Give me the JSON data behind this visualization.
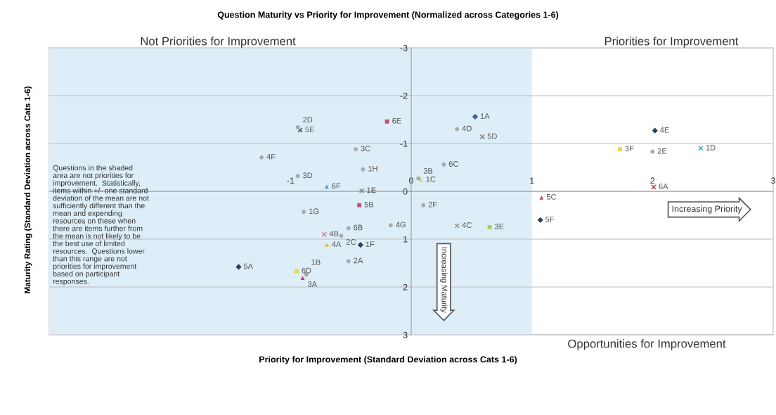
{
  "chart_data": {
    "type": "scatter",
    "title": "Question Maturity vs Priority for Improvement (Normalized across Categories 1-6)",
    "xlabel": "Priority for Improvement (Standard Deviation across Cats 1-6)",
    "ylabel": "Maturity Rating (Standard Deviation across Cats 1-6)",
    "xlim": [
      -3,
      3
    ],
    "xticks": [
      -1,
      0,
      1,
      2,
      3
    ],
    "ylim": [
      3,
      -3
    ],
    "yticks": [
      -3,
      -2,
      -1,
      0,
      1,
      2,
      3
    ],
    "grid": "y",
    "legend": false,
    "bands": [
      {
        "axis": "x",
        "from": -3,
        "to": 1,
        "color": "#ddeef8"
      }
    ],
    "annotations": [
      "Not Priorities for Improvement",
      "Priorities for Improvement",
      "Opportunities for Improvement",
      "Increasing Priority",
      "Increasing Maturity",
      "Questions in the shaded\narea are not priorities for\nimprovement.  Statistically,\nitems within +/- one standard\ndeviation of the mean are not\nsufficiently different than the\nmean and expending\nresources on these when\nthere are items further from\nthe mean is not likely to be\nthe best use of limited\nresources.  Questions lower\nthan this range are not\npriorities for improvement\nbased on participant\nresponses.",
      {
        "text": "1A",
        "x": 0.53,
        "y": -1.56
      },
      {
        "text": "5F",
        "x": 1.07,
        "y": 0.6
      },
      {
        "text": "1F",
        "x": -0.42,
        "y": 1.12
      },
      {
        "text": "5A",
        "x": -1.43,
        "y": 1.58
      },
      {
        "text": "4E",
        "x": 2.02,
        "y": -1.27
      },
      {
        "text": "6E",
        "x": -0.2,
        "y": -1.46
      },
      {
        "text": "5B",
        "x": -0.43,
        "y": 0.29
      },
      {
        "text": "3F",
        "x": 1.73,
        "y": -0.88
      },
      {
        "text": "3E",
        "x": 0.65,
        "y": 0.75
      },
      {
        "text": "6D",
        "x": -0.95,
        "y": 1.67
      },
      {
        "text": "5C",
        "x": 1.08,
        "y": 0.13
      },
      {
        "text": "6F",
        "x": -0.7,
        "y": -0.1
      },
      {
        "text": "4A",
        "x": -0.7,
        "y": 1.12
      },
      {
        "text": "3A",
        "x": -0.9,
        "y": 1.81
      },
      {
        "text": "1C",
        "x": 0.08,
        "y": -0.24
      },
      {
        "text": "5E",
        "x": -0.92,
        "y": -1.28
      },
      {
        "text": "5D",
        "x": 0.59,
        "y": -1.14
      },
      {
        "text": "1E",
        "x": -0.41,
        "y": -0.01
      },
      {
        "text": "4B",
        "x": -0.72,
        "y": 0.9
      },
      {
        "text": "1D",
        "x": 2.4,
        "y": -0.9
      },
      {
        "text": "4C",
        "x": 0.38,
        "y": 0.72
      },
      {
        "text": "6A",
        "x": 2.01,
        "y": -0.09
      },
      {
        "text": "2D",
        "x": -0.94,
        "y": -1.34
      },
      {
        "text": "4D",
        "x": 0.38,
        "y": -1.3
      },
      {
        "text": "3C",
        "x": -0.46,
        "y": -0.88
      },
      {
        "text": "4F",
        "x": -1.24,
        "y": -0.71
      },
      {
        "text": "6C",
        "x": 0.27,
        "y": -0.56
      },
      {
        "text": "1H",
        "x": -0.4,
        "y": -0.46
      },
      {
        "text": "3D",
        "x": -0.94,
        "y": -0.32
      },
      {
        "text": "3B",
        "x": 0.06,
        "y": -0.27
      },
      {
        "text": "2F",
        "x": 0.1,
        "y": 0.29
      },
      {
        "text": "1G",
        "x": -0.89,
        "y": 0.43
      },
      {
        "text": "4G",
        "x": -0.17,
        "y": 0.71
      },
      {
        "text": "6B",
        "x": -0.52,
        "y": 0.77
      },
      {
        "text": "2C",
        "x": -0.58,
        "y": 0.93
      },
      {
        "text": "2A",
        "x": -0.52,
        "y": 1.46
      },
      {
        "text": "1B",
        "x": -0.87,
        "y": 1.74
      },
      {
        "text": "2E",
        "x": 2.0,
        "y": -0.83
      }
    ],
    "series": [
      {
        "marker": "diamond",
        "x": [
          0.53,
          1.07,
          -0.42,
          -1.43,
          2.02
        ],
        "values": [
          -1.56,
          0.6,
          1.12,
          1.58,
          -1.27
        ],
        "colors": [
          "#3a5fa8",
          "#2f3f5f",
          "#2f3f5f",
          "#2f3f5f",
          "#2f3f5f"
        ]
      },
      {
        "marker": "square",
        "x": [
          -0.2,
          -0.43,
          1.73,
          0.65,
          -0.95
        ],
        "values": [
          -1.46,
          0.29,
          -0.88,
          0.75,
          1.67
        ],
        "colors": [
          "#c0507a",
          "#c0507a",
          "#e8d84a",
          "#a8cf5a",
          "#e8d84a"
        ]
      },
      {
        "marker": "triangle",
        "x": [
          1.08,
          -0.7,
          -0.7,
          -0.9,
          0.08
        ],
        "values": [
          0.13,
          -0.1,
          1.12,
          1.81,
          -0.24
        ],
        "colors": [
          "#c0504d",
          "#4aa3d8",
          "#e0c050",
          "#c0406a",
          "#d8e060"
        ]
      },
      {
        "marker": "cross",
        "x": [
          -0.92,
          0.59,
          -0.41,
          -0.72,
          2.4,
          0.38,
          2.01
        ],
        "values": [
          -1.28,
          -1.14,
          -0.01,
          0.9,
          -0.9,
          0.72,
          -0.09
        ],
        "colors": [
          "#555555",
          "#888888",
          "#888888",
          "#d08090",
          "#4ab0d0",
          "#999999",
          "#c0504d"
        ]
      },
      {
        "marker": "circle",
        "color": "#aaaaaa",
        "x": [
          -0.94,
          0.38,
          -0.46,
          -1.24,
          0.27,
          -0.4,
          -0.94,
          0.06,
          0.1,
          -0.89,
          -0.17,
          -0.52,
          -0.58,
          -0.52,
          -0.87,
          2.0
        ],
        "values": [
          -1.34,
          -1.3,
          -0.88,
          -0.71,
          -0.56,
          -0.46,
          -0.32,
          -0.27,
          0.29,
          0.43,
          0.71,
          0.77,
          0.93,
          1.46,
          1.74,
          -0.83
        ]
      }
    ]
  }
}
